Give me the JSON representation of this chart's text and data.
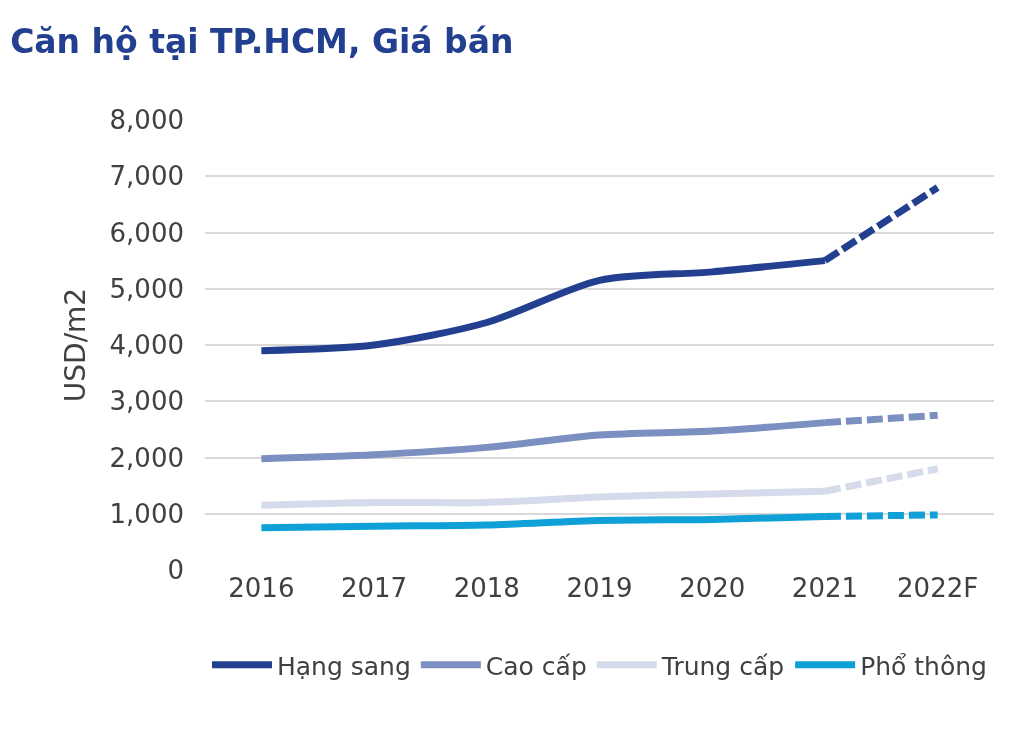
{
  "chart_data": {
    "type": "line",
    "title": "Căn hộ tại TP.HCM, Giá bán",
    "ylabel": "USD/m2",
    "categories": [
      "2016",
      "2017",
      "2018",
      "2019",
      "2020",
      "2021",
      "2022F"
    ],
    "ylim": [
      0,
      8000
    ],
    "yticks": [
      {
        "value": 0,
        "label": "0"
      },
      {
        "value": 1000,
        "label": "1,000"
      },
      {
        "value": 2000,
        "label": "2,000"
      },
      {
        "value": 3000,
        "label": "3,000"
      },
      {
        "value": 4000,
        "label": "4,000"
      },
      {
        "value": 5000,
        "label": "5,000"
      },
      {
        "value": 6000,
        "label": "6,000"
      },
      {
        "value": 7000,
        "label": "7,000"
      },
      {
        "value": 8000,
        "label": "8,000"
      }
    ],
    "grid": "y",
    "legend": "bottom",
    "marker": "none",
    "line_style": "solid",
    "series": [
      {
        "name": "Hạng sang",
        "color": "#233f8f",
        "values": [
          3900,
          4000,
          4400,
          5150,
          5300,
          5500,
          null
        ]
      },
      {
        "name": "Cao cấp",
        "color": "#7b8fc0",
        "values": [
          1980,
          2050,
          2180,
          2400,
          2470,
          2620,
          null
        ]
      },
      {
        "name": "Trung cấp",
        "color": "#d5dbea",
        "values": [
          1150,
          1200,
          1200,
          1300,
          1350,
          1400,
          null
        ]
      },
      {
        "name": "Phổ thông",
        "color": "#0fa0d8",
        "values": [
          750,
          780,
          800,
          880,
          900,
          950,
          null
        ]
      },
      {
        "color": "#233f8f",
        "line_style": "dashed",
        "values": [
          null,
          null,
          null,
          null,
          null,
          5500,
          6800
        ]
      },
      {
        "color": "#7b8fc0",
        "line_style": "dashed",
        "values": [
          null,
          null,
          null,
          null,
          null,
          2620,
          2750
        ]
      },
      {
        "color": "#d5dbea",
        "line_style": "dashed",
        "values": [
          null,
          null,
          null,
          null,
          null,
          1400,
          1800
        ]
      },
      {
        "color": "#0fa0d8",
        "line_style": "dashed",
        "values": [
          null,
          null,
          null,
          null,
          null,
          950,
          980
        ]
      }
    ]
  }
}
